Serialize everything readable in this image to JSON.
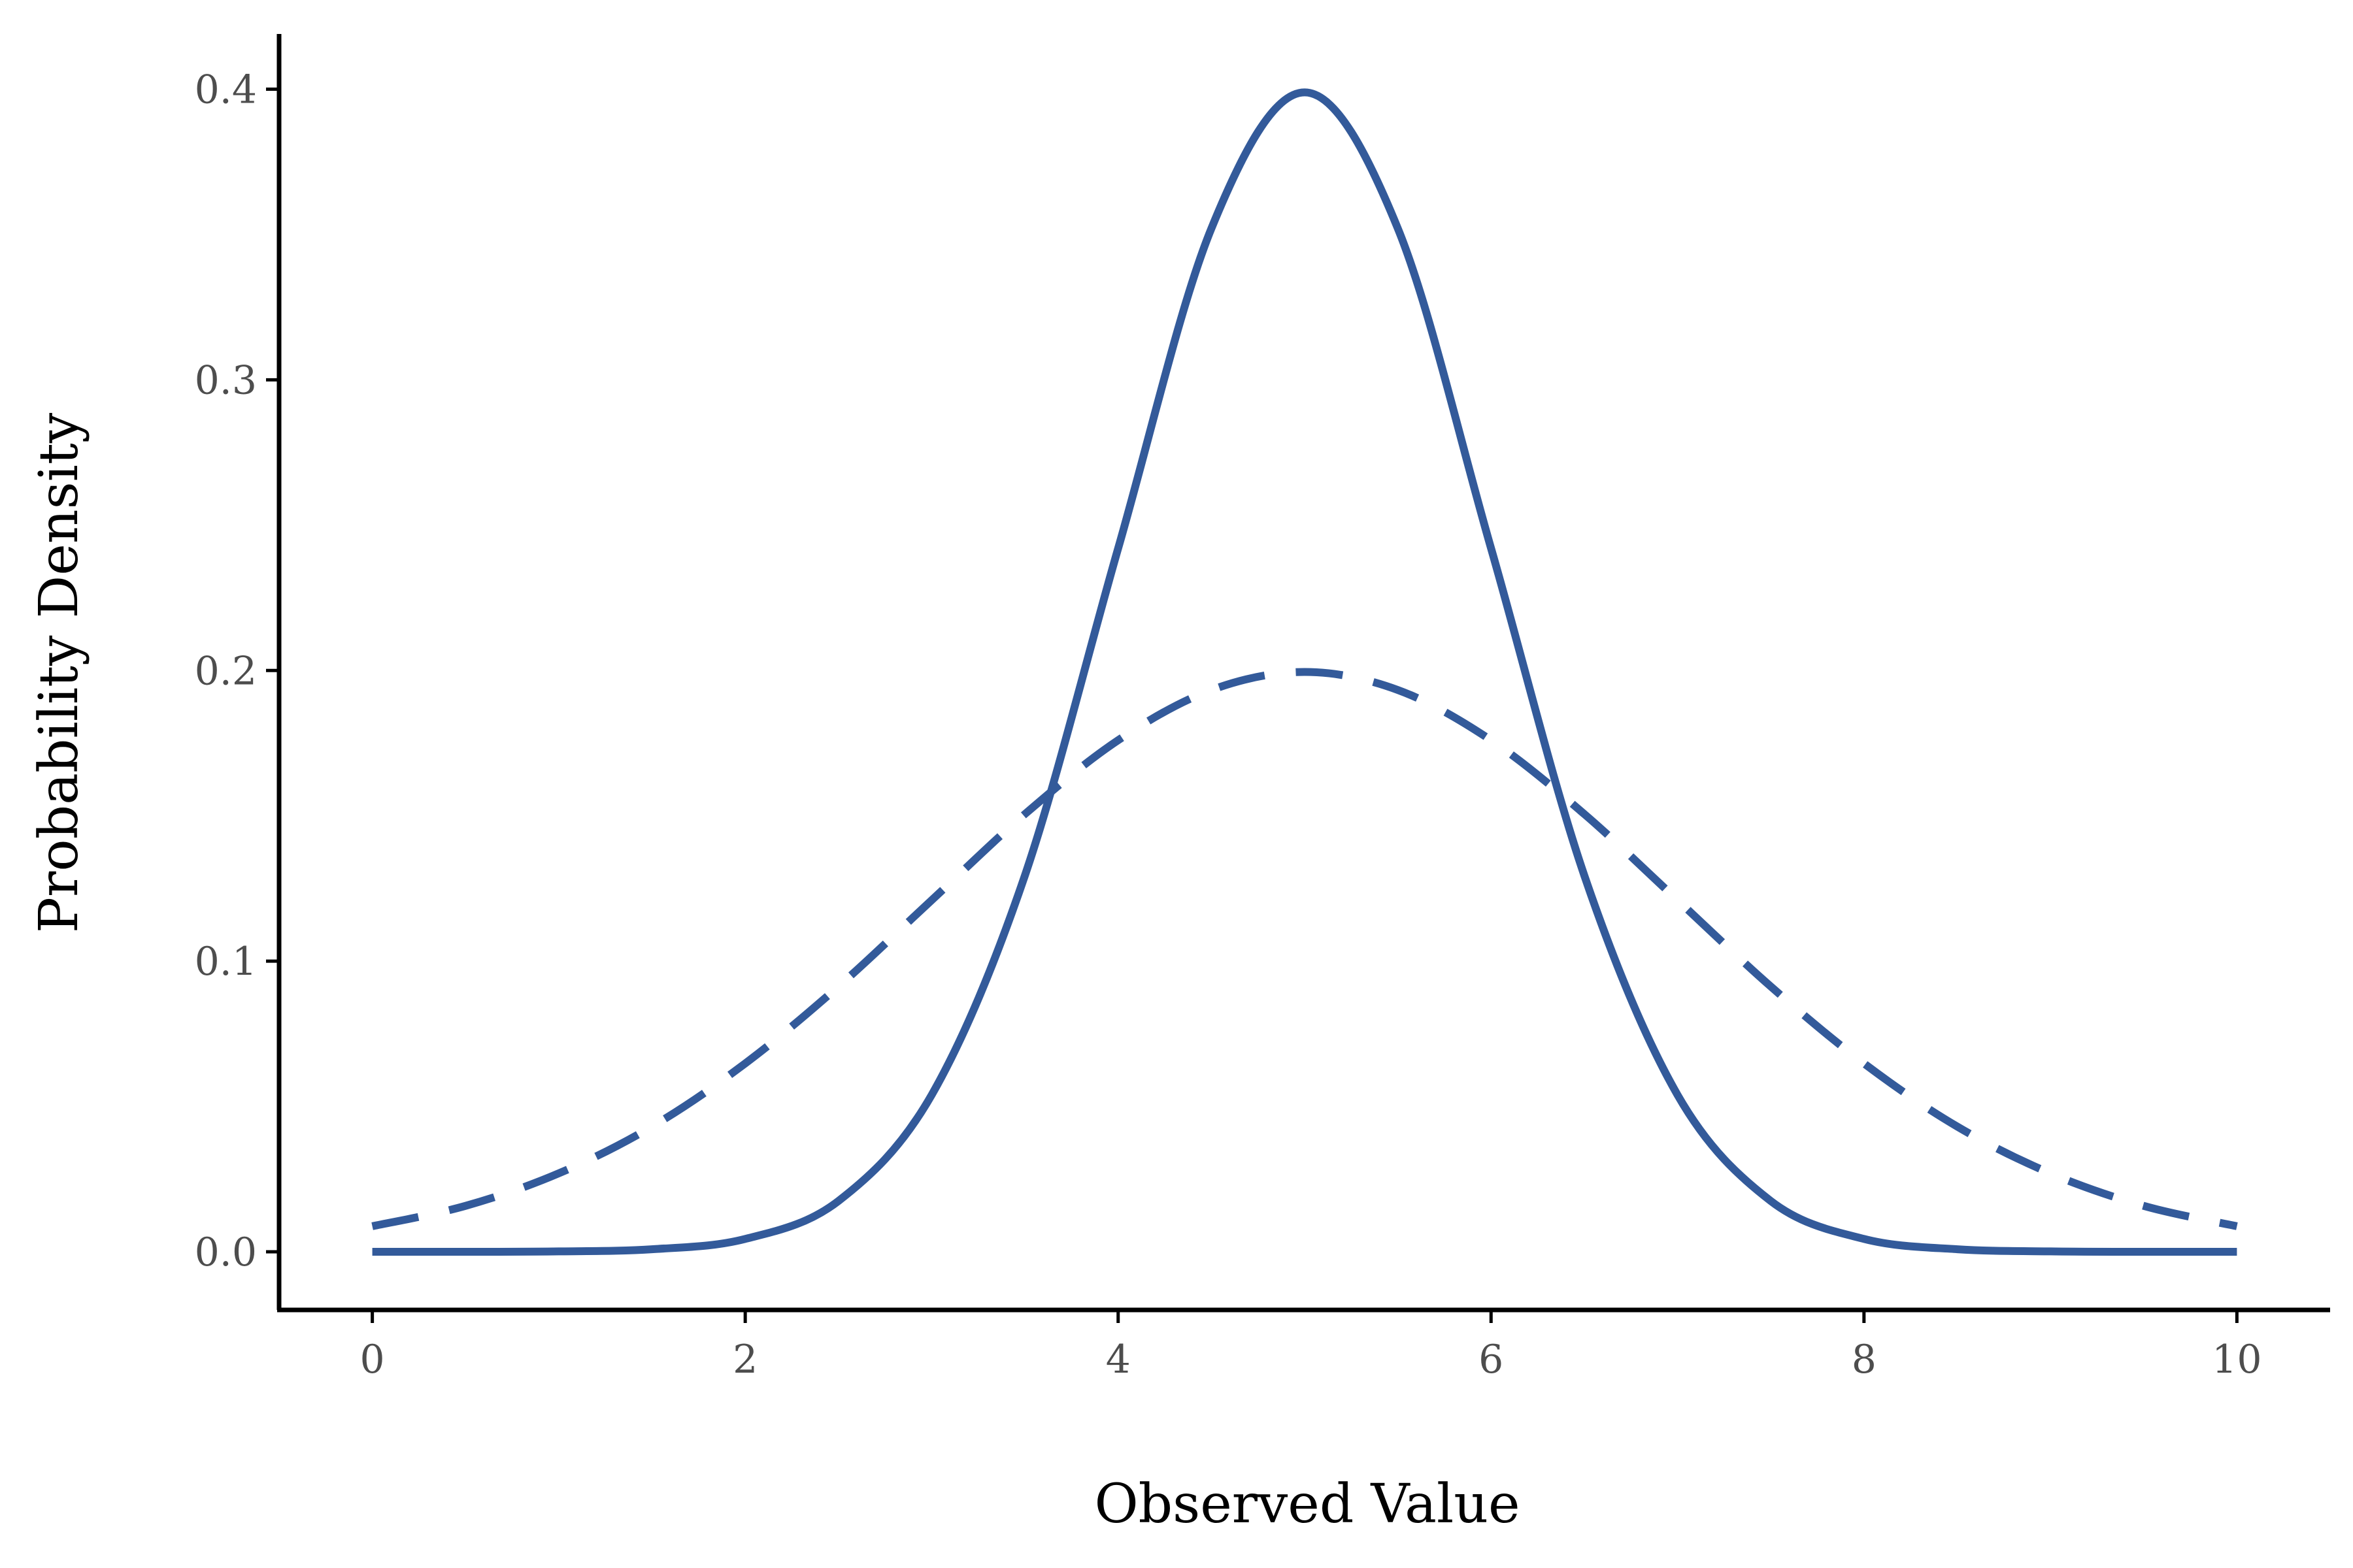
{
  "chart_data": {
    "type": "line",
    "title": "",
    "xlabel": "Observed Value",
    "ylabel": "Probability Density",
    "xlim": [
      -0.5,
      10.5
    ],
    "ylim": [
      -0.02,
      0.419
    ],
    "x_ticks": [
      0,
      2,
      4,
      6,
      8,
      10
    ],
    "x_tick_labels": [
      "0",
      "2",
      "4",
      "6",
      "8",
      "10"
    ],
    "y_ticks": [
      0.0,
      0.1,
      0.2,
      0.3,
      0.4
    ],
    "y_tick_labels": [
      "0.0",
      "0.1",
      "0.2",
      "0.3",
      "0.4"
    ],
    "grid": false,
    "legend": "none",
    "color": "#335a9a",
    "series": [
      {
        "style": "solid",
        "x": [
          0,
          0.5,
          1,
          1.5,
          2,
          2.5,
          3,
          3.5,
          4,
          4.5,
          5,
          5.5,
          6,
          6.5,
          7,
          7.5,
          8,
          8.5,
          9,
          9.5,
          10
        ],
        "values": [
          1.5e-06,
          1.6e-05,
          0.000134,
          0.000873,
          0.00443,
          0.0175,
          0.054,
          0.1295,
          0.242,
          0.3521,
          0.3989,
          0.3521,
          0.242,
          0.1295,
          0.054,
          0.0175,
          0.00443,
          0.000873,
          0.000134,
          1.6e-05,
          1.5e-06
        ]
      },
      {
        "style": "dashed",
        "x": [
          0,
          0.5,
          1,
          1.5,
          2,
          2.5,
          3,
          3.5,
          4,
          4.5,
          5,
          5.5,
          6,
          6.5,
          7,
          7.5,
          8,
          8.5,
          9,
          9.5,
          10
        ],
        "values": [
          0.0088,
          0.0158,
          0.027,
          0.0431,
          0.0648,
          0.0913,
          0.121,
          0.1506,
          0.176,
          0.1933,
          0.1995,
          0.1933,
          0.176,
          0.1506,
          0.121,
          0.0913,
          0.0648,
          0.0431,
          0.027,
          0.0158,
          0.0088
        ]
      }
    ]
  }
}
